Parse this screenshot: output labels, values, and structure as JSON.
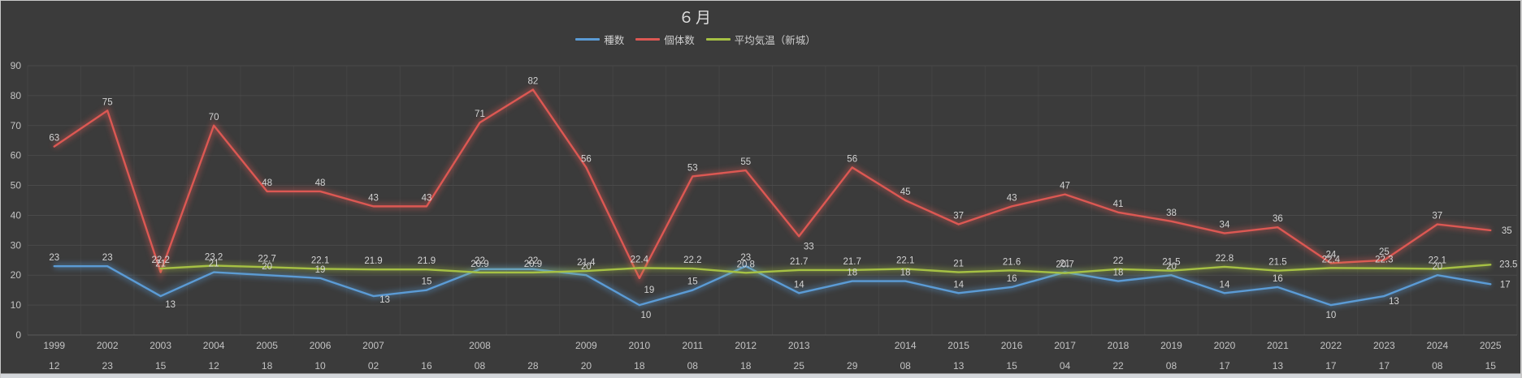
{
  "title": "６月",
  "legend": [
    {
      "label": "種数",
      "color": "#5b9bd5"
    },
    {
      "label": "個体数",
      "color": "#dc5853",
      "semantic": "individuals"
    },
    {
      "label": "平均気温（新城）",
      "color": "#a6c144",
      "semantic": "avg-temperature-shinshiro"
    }
  ],
  "chart_data": {
    "type": "line",
    "title": "６月",
    "x_year_labels": [
      "1999",
      "2002",
      "2003",
      "2004",
      "2005",
      "2006",
      "2007",
      "",
      "2008",
      "",
      "2009",
      "2010",
      "2011",
      "2012",
      "2013",
      "",
      "2014",
      "2015",
      "2016",
      "2017",
      "2018",
      "2019",
      "2020",
      "2021",
      "2022",
      "2023",
      "2024",
      "2025"
    ],
    "x_day_labels": [
      "12",
      "23",
      "15",
      "12",
      "18",
      "10",
      "02",
      "16",
      "08",
      "28",
      "20",
      "18",
      "08",
      "18",
      "25",
      "29",
      "08",
      "13",
      "15",
      "04",
      "22",
      "08",
      "17",
      "13",
      "17",
      "17",
      "08",
      "15"
    ],
    "y_ticks": [
      0,
      10,
      20,
      30,
      40,
      50,
      60,
      70,
      80,
      90
    ],
    "ylim": [
      0,
      90
    ],
    "grid": true,
    "legend_position": "top",
    "series": [
      {
        "name": "種数",
        "semantic": "species",
        "color": "#5b9bd5",
        "values": [
          23,
          23,
          13,
          21,
          20,
          19,
          13,
          15,
          22,
          22,
          20,
          10,
          15,
          23,
          14,
          18,
          18,
          14,
          16,
          21,
          18,
          20,
          14,
          16,
          10,
          13,
          20,
          17
        ]
      },
      {
        "name": "個体数",
        "semantic": "individuals",
        "color": "#dc5853",
        "values": [
          63,
          75,
          21,
          70,
          48,
          48,
          43,
          43,
          71,
          82,
          56,
          19,
          53,
          55,
          33,
          56,
          45,
          37,
          43,
          47,
          41,
          38,
          34,
          36,
          24,
          25,
          37,
          35
        ]
      },
      {
        "name": "平均気温（新城）",
        "semantic": "avg-temp",
        "color": "#a6c144",
        "values": [
          null,
          null,
          22.2,
          23.2,
          22.7,
          22.1,
          21.9,
          21.9,
          20.9,
          20.9,
          21.4,
          22.4,
          22.2,
          20.8,
          21.7,
          21.7,
          22.1,
          21,
          21.6,
          20.7,
          22,
          21.5,
          22.8,
          21.5,
          22.4,
          22.3,
          22.1,
          23.5
        ]
      }
    ]
  }
}
